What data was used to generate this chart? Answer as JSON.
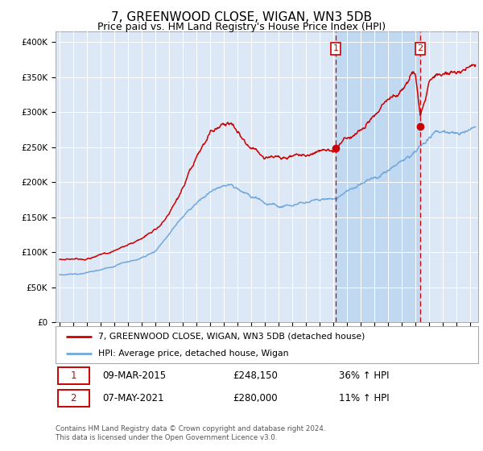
{
  "title": "7, GREENWOOD CLOSE, WIGAN, WN3 5DB",
  "subtitle": "Price paid vs. HM Land Registry's House Price Index (HPI)",
  "title_fontsize": 11,
  "subtitle_fontsize": 9,
  "ylabel_ticks": [
    "£0",
    "£50K",
    "£100K",
    "£150K",
    "£200K",
    "£250K",
    "£300K",
    "£350K",
    "£400K"
  ],
  "ytick_values": [
    0,
    50000,
    100000,
    150000,
    200000,
    250000,
    300000,
    350000,
    400000
  ],
  "ylim": [
    0,
    415000
  ],
  "xlim_start": 1994.7,
  "xlim_end": 2025.6,
  "hpi_color": "#6fa8dc",
  "price_color": "#cc0000",
  "point1_x": 2015.19,
  "point1_y": 248150,
  "point2_x": 2021.36,
  "point2_y": 280000,
  "vline1_x": 2015.19,
  "vline2_x": 2021.36,
  "sale1_label": "09-MAR-2015",
  "sale1_price": "£248,150",
  "sale1_hpi": "36% ↑ HPI",
  "sale2_label": "07-MAY-2021",
  "sale2_price": "£280,000",
  "sale2_hpi": "11% ↑ HPI",
  "legend_line1": "7, GREENWOOD CLOSE, WIGAN, WN3 5DB (detached house)",
  "legend_line2": "HPI: Average price, detached house, Wigan",
  "footer1": "Contains HM Land Registry data © Crown copyright and database right 2024.",
  "footer2": "This data is licensed under the Open Government Licence v3.0.",
  "background_color": "#ffffff",
  "plot_bg_color": "#dce8f5",
  "grid_color": "#ffffff",
  "shade_color": "#c0d8f0"
}
